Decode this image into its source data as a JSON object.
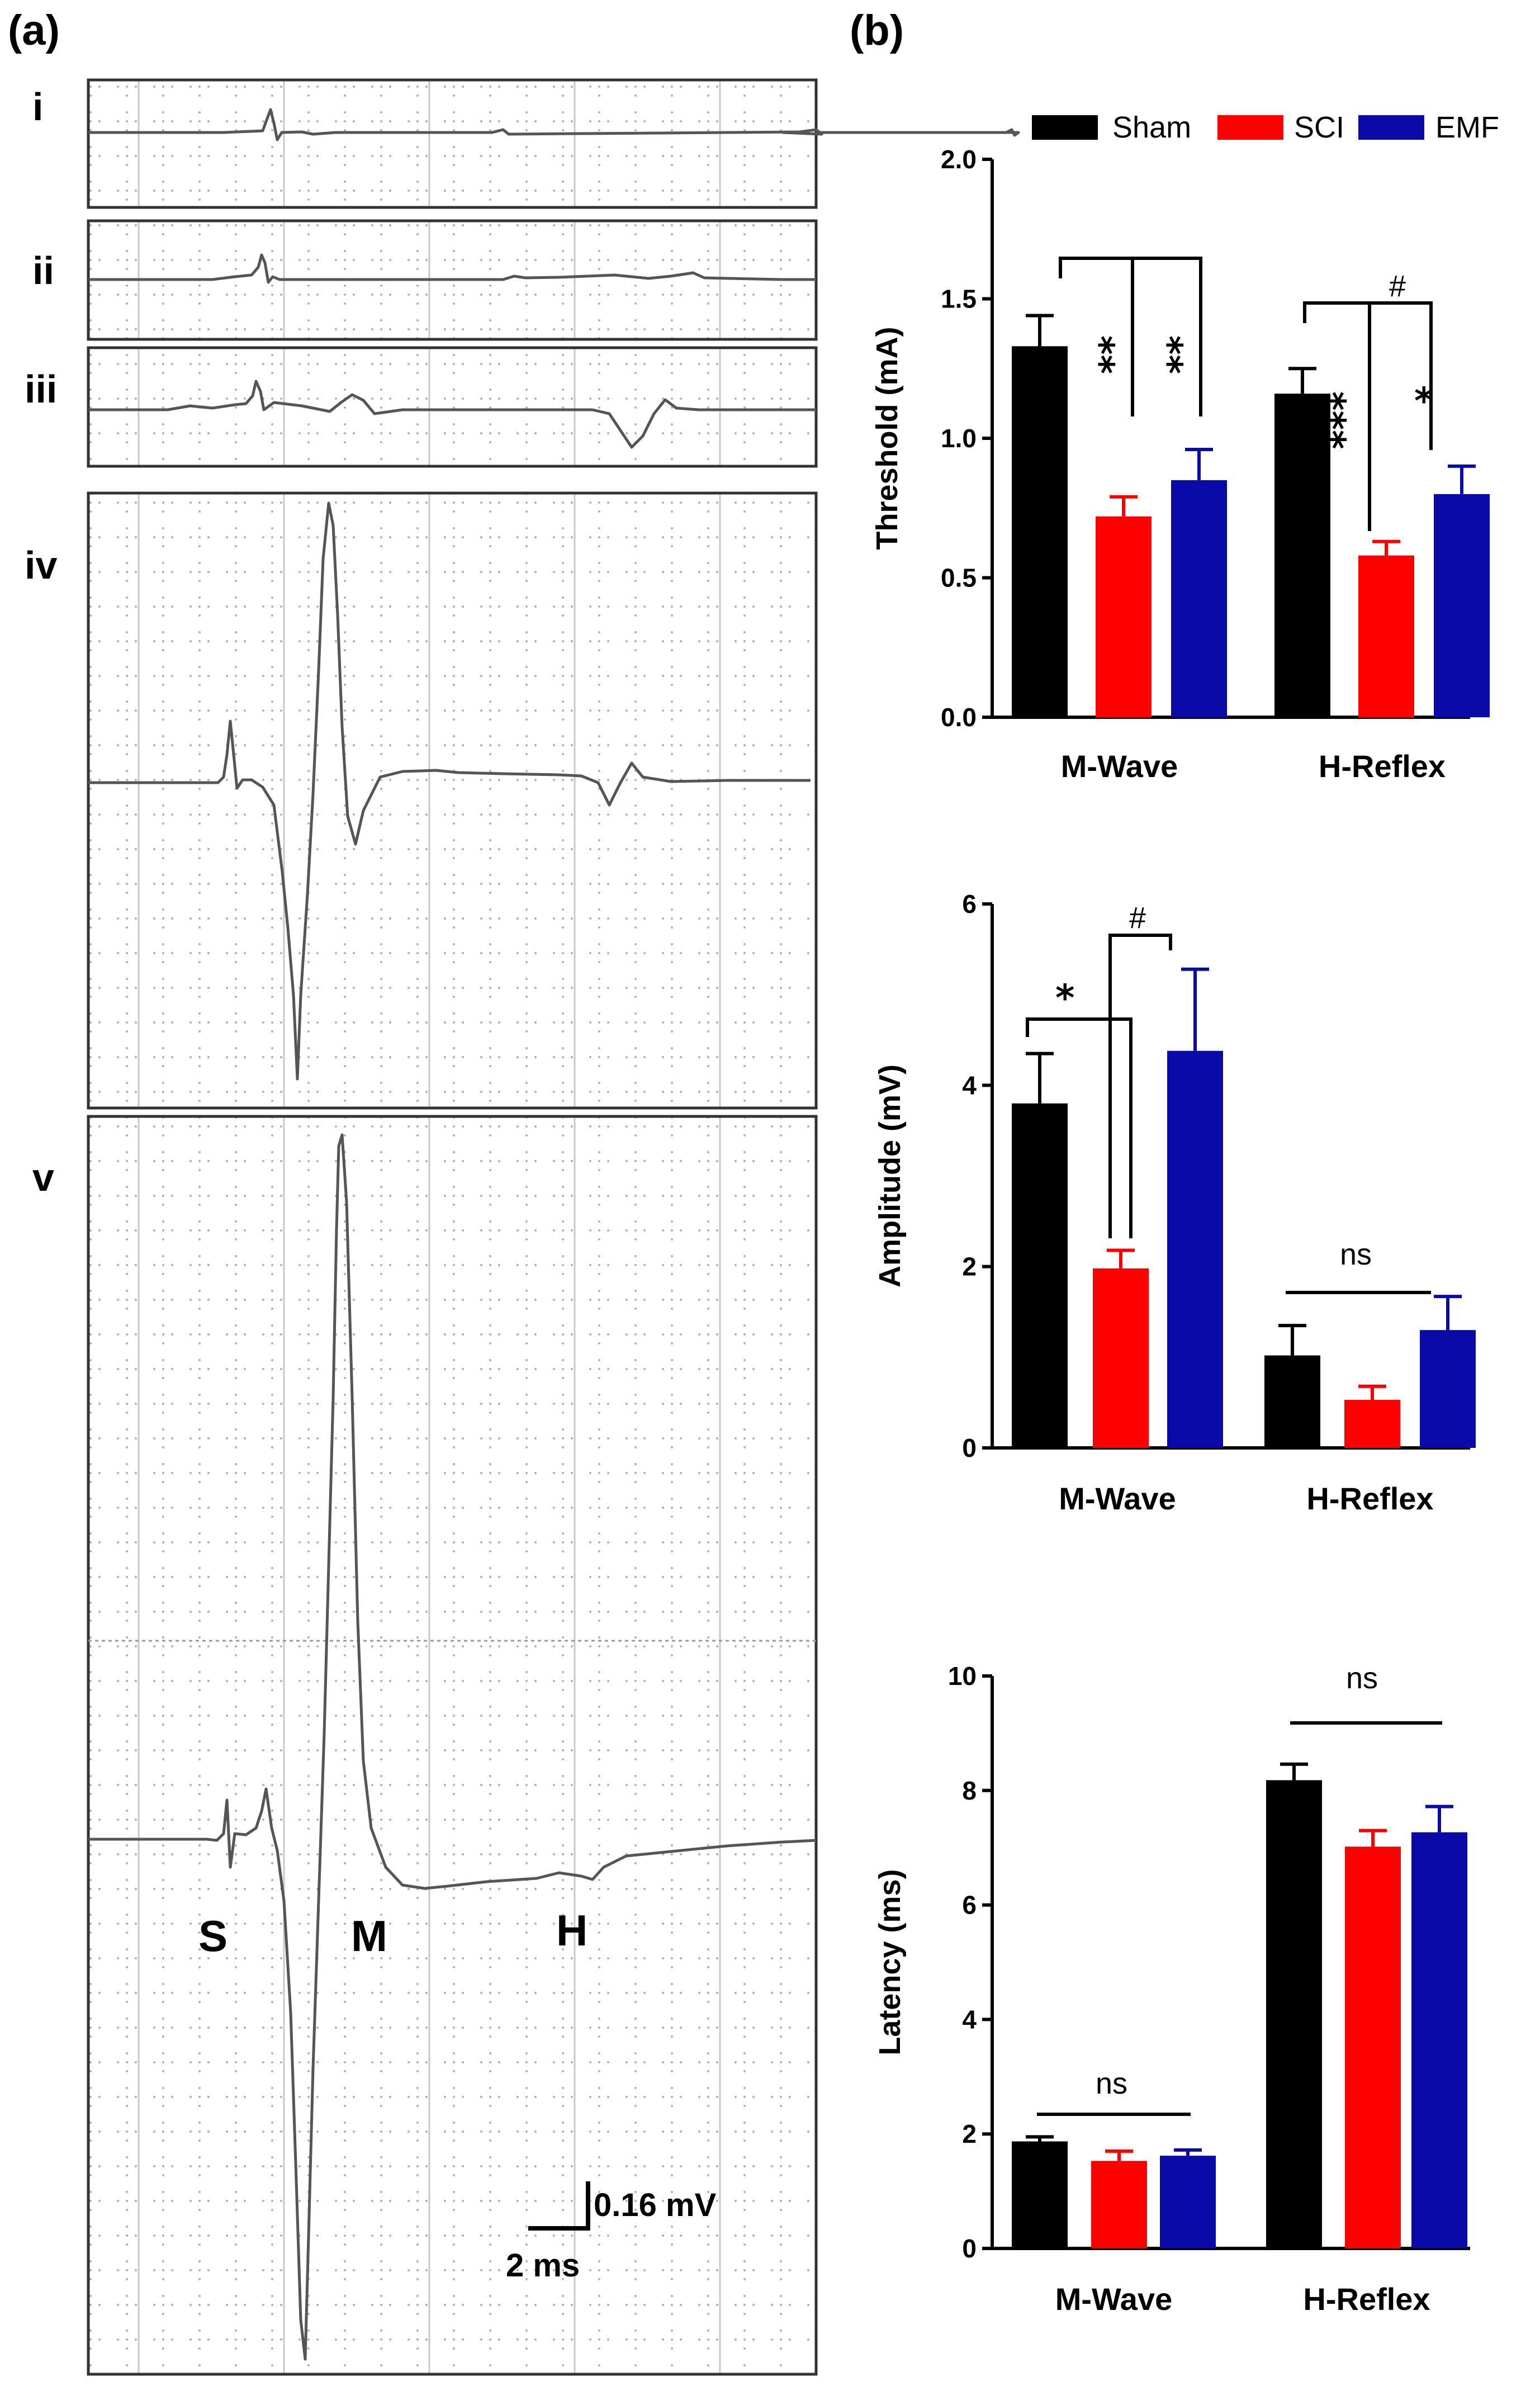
{
  "panel_a": {
    "label": "(a)",
    "traces": [
      {
        "label": "i"
      },
      {
        "label": "ii"
      },
      {
        "label": "iii"
      },
      {
        "label": "iv"
      },
      {
        "label": "v"
      }
    ],
    "wave_labels": {
      "s": "S",
      "m": "M",
      "h": "H"
    },
    "scale_bar": {
      "voltage": "0.16 mV",
      "time": "2 ms"
    }
  },
  "panel_b": {
    "label": "(b)",
    "legend": [
      {
        "name": "Sham",
        "color": "#000000"
      },
      {
        "name": "SCI",
        "color": "#ff0000"
      },
      {
        "name": "EMF",
        "color": "#0a0aa8"
      }
    ]
  },
  "chart_data": [
    {
      "type": "bar",
      "ylabel": "Threshold (mA)",
      "ylim": [
        0,
        2.0
      ],
      "yticks": [
        "0.0",
        "0.5",
        "1.0",
        "1.5",
        "2.0"
      ],
      "ytick_values": [
        0,
        0.5,
        1.0,
        1.5,
        2.0
      ],
      "categories": [
        "M-Wave",
        "H-Reflex"
      ],
      "series": [
        {
          "name": "Sham",
          "color": "#000000",
          "values": [
            1.33,
            1.16
          ],
          "errors": [
            0.11,
            0.09
          ]
        },
        {
          "name": "SCI",
          "color": "#ff0000",
          "values": [
            0.72,
            0.58
          ],
          "errors": [
            0.07,
            0.05
          ]
        },
        {
          "name": "EMF",
          "color": "#0a0aa8",
          "values": [
            0.85,
            0.8
          ],
          "errors": [
            0.11,
            0.1
          ]
        }
      ],
      "annotations": {
        "m_sci": "**",
        "m_emf": "**",
        "h_sci": "***",
        "h_emf": "*",
        "h_bracket": "#"
      }
    },
    {
      "type": "bar",
      "ylabel": "Amplitude (mV)",
      "ylim": [
        0,
        6
      ],
      "yticks": [
        "0",
        "2",
        "4",
        "6"
      ],
      "ytick_values": [
        0,
        2,
        4,
        6
      ],
      "categories": [
        "M-Wave",
        "H-Reflex"
      ],
      "series": [
        {
          "name": "Sham",
          "color": "#000000",
          "values": [
            3.8,
            1.02
          ],
          "errors": [
            0.55,
            0.33
          ]
        },
        {
          "name": "SCI",
          "color": "#ff0000",
          "values": [
            1.98,
            0.53
          ],
          "errors": [
            0.2,
            0.15
          ]
        },
        {
          "name": "EMF",
          "color": "#0a0aa8",
          "values": [
            4.38,
            1.3
          ],
          "errors": [
            0.9,
            0.37
          ]
        }
      ],
      "annotations": {
        "m_left": "*",
        "m_right": "#",
        "h_ns": "ns"
      }
    },
    {
      "type": "bar",
      "ylabel": "Latency (ms)",
      "ylim": [
        0,
        10
      ],
      "yticks": [
        "0",
        "2",
        "4",
        "6",
        "8",
        "10"
      ],
      "ytick_values": [
        0,
        2,
        4,
        6,
        8,
        10
      ],
      "categories": [
        "M-Wave",
        "H-Reflex"
      ],
      "series": [
        {
          "name": "Sham",
          "color": "#000000",
          "values": [
            1.87,
            8.18
          ],
          "errors": [
            0.08,
            0.28
          ]
        },
        {
          "name": "SCI",
          "color": "#ff0000",
          "values": [
            1.53,
            7.02
          ],
          "errors": [
            0.17,
            0.28
          ]
        },
        {
          "name": "EMF",
          "color": "#0a0aa8",
          "values": [
            1.62,
            7.27
          ],
          "errors": [
            0.1,
            0.45
          ]
        }
      ],
      "annotations": {
        "m_ns": "ns",
        "h_ns": "ns"
      }
    }
  ]
}
